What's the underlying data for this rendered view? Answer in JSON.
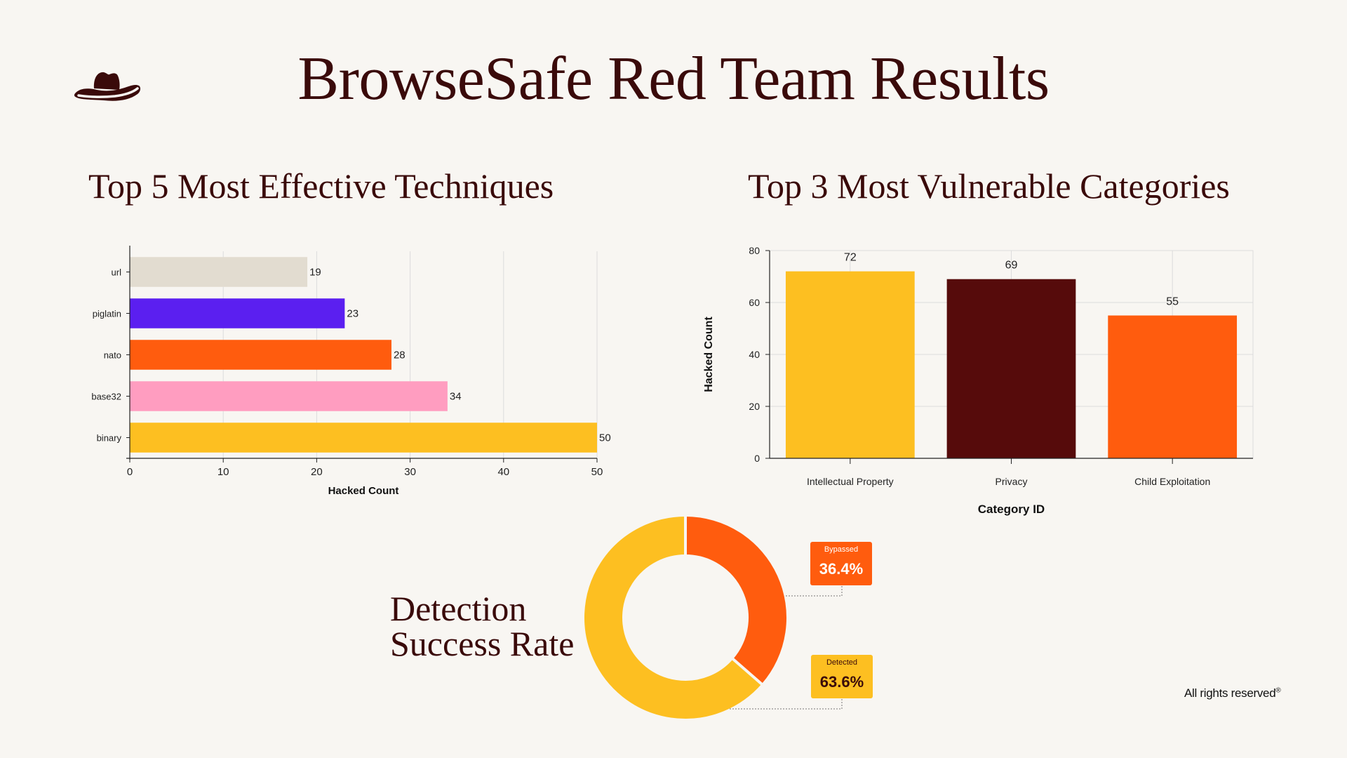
{
  "title": "BrowseSafe Red Team Results",
  "logo": {
    "icon": "cowboy-hat-icon",
    "color": "#3a0a0a"
  },
  "footer": {
    "text": "All rights reserved",
    "mark": "®"
  },
  "colors": {
    "text": "#3a0a0a",
    "orange": "#ff5c0e",
    "yellow": "#fdbf21",
    "maroon": "#560b0b",
    "purple": "#5b1ff0",
    "pink": "#ff9dc0",
    "beige": "#e2dcd0"
  },
  "sections": {
    "techniques": {
      "title": "Top 5 Most Effective Techniques"
    },
    "categories": {
      "title": "Top 3 Most Vulnerable Categories"
    },
    "detection": {
      "title_line1": "Detection",
      "title_line2": "Success Rate"
    }
  },
  "chart_data": [
    {
      "type": "bar",
      "orientation": "horizontal",
      "title": "Top 5 Most Effective Techniques",
      "categories": [
        "url",
        "piglatin",
        "nato",
        "base32",
        "binary"
      ],
      "values": [
        19,
        23,
        28,
        34,
        50
      ],
      "colors": [
        "#e2dcd0",
        "#5b1ff0",
        "#ff5c0e",
        "#ff9dc0",
        "#fdbf21"
      ],
      "xlabel": "Hacked Count",
      "ylabel": "",
      "xlim": [
        0,
        50
      ],
      "xticks": [
        0,
        10,
        20,
        30,
        40,
        50
      ],
      "grid": true,
      "data_labels": true
    },
    {
      "type": "bar",
      "orientation": "vertical",
      "title": "Top 3 Most Vulnerable Categories",
      "categories": [
        "Intellectual Property",
        "Privacy",
        "Child Exploitation"
      ],
      "values": [
        72,
        69,
        55
      ],
      "colors": [
        "#fdbf21",
        "#560b0b",
        "#ff5c0e"
      ],
      "xlabel": "Category ID",
      "ylabel": "Hacked Count",
      "ylim": [
        0,
        80
      ],
      "yticks": [
        0,
        20,
        40,
        60,
        80
      ],
      "grid": true,
      "data_labels": true
    },
    {
      "type": "pie",
      "style": "donut",
      "title": "Detection Success Rate",
      "labels": [
        "Bypassed",
        "Detected"
      ],
      "values": [
        36.4,
        63.6
      ],
      "value_labels": [
        "36.4%",
        "63.6%"
      ],
      "colors": [
        "#ff5c0e",
        "#fdbf21"
      ]
    }
  ]
}
